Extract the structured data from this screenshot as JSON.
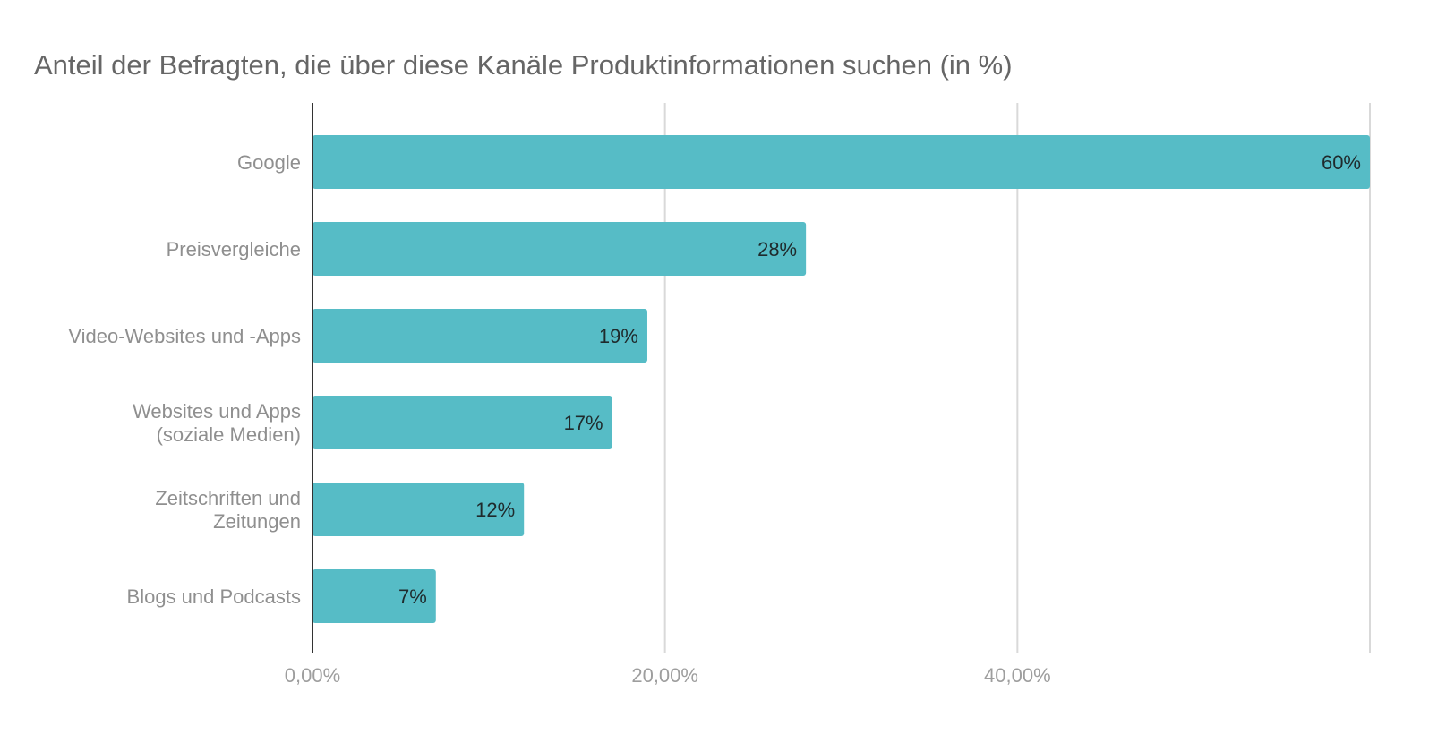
{
  "chart_data": {
    "type": "bar",
    "orientation": "horizontal",
    "title": "Anteil der Befragten, die über diese Kanäle Produktinformationen suchen (in %)",
    "categories": [
      "Google",
      "Preisvergleiche",
      "Video-Websites und -Apps",
      "Websites und Apps\n(soziale Medien)",
      "Zeitschriften und\nZeitungen",
      "Blogs und Podcasts"
    ],
    "values": [
      60,
      28,
      19,
      17,
      12,
      7
    ],
    "data_labels": [
      "60%",
      "28%",
      "19%",
      "17%",
      "12%",
      "7%"
    ],
    "xlim": [
      0,
      60
    ],
    "x_ticks": [
      0,
      20,
      40,
      60
    ],
    "x_tick_labels": [
      "0,00%",
      "20,00%",
      "40,00%",
      ""
    ],
    "xlabel": "",
    "ylabel": "",
    "grid": true,
    "legend": "none",
    "colors": {
      "bar": "#56bcc6",
      "grid": "#d9d9d9",
      "axis": "#333333"
    }
  }
}
